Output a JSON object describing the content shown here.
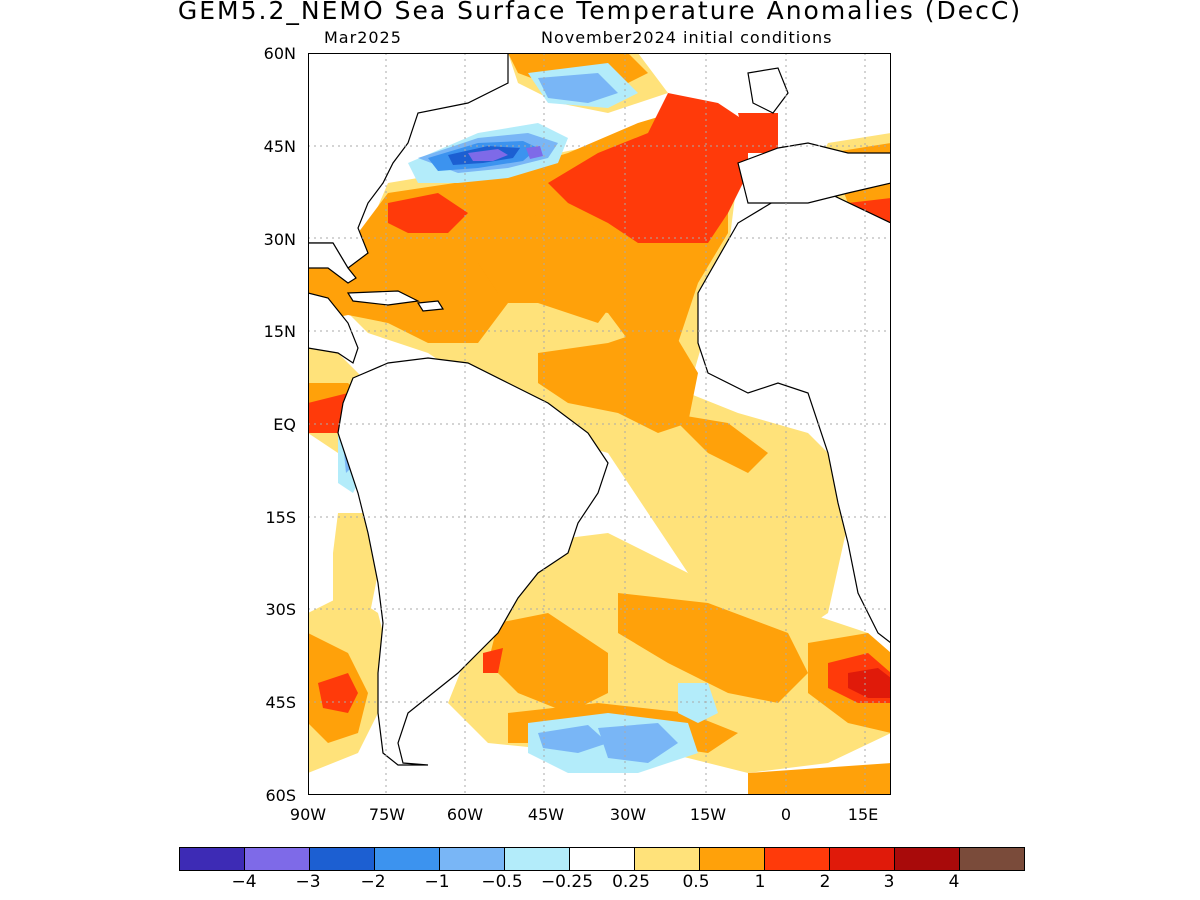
{
  "title": "GEM5.2_NEMO Sea Surface Temperature Anomalies (DecC)",
  "subtitle_left": "Mar2025",
  "subtitle_right": "November2024 initial conditions",
  "lat_labels": [
    "60N",
    "45N",
    "30N",
    "15N",
    "EQ",
    "15S",
    "30S",
    "45S",
    "60S"
  ],
  "lon_labels": [
    "90W",
    "75W",
    "60W",
    "45W",
    "30W",
    "15W",
    "0",
    "15E"
  ],
  "colorbar": {
    "colors": [
      "#3d2bb5",
      "#7e6ae8",
      "#1c5fd2",
      "#3c93ef",
      "#79b6f6",
      "#b3ecfa",
      "#ffffff",
      "#ffe27a",
      "#ffa10a",
      "#ff3a0a",
      "#e01a0a",
      "#a80a0a",
      "#7a4b3a"
    ],
    "labels": [
      "-4",
      "-3",
      "-2",
      "-1",
      "-0.5",
      "-0.25",
      "0.25",
      "0.5",
      "1",
      "2",
      "3",
      "4"
    ]
  },
  "map": {
    "land_color": "#ffffff",
    "coastline_color": "#000000",
    "grid_color": "#aaaaaa"
  }
}
